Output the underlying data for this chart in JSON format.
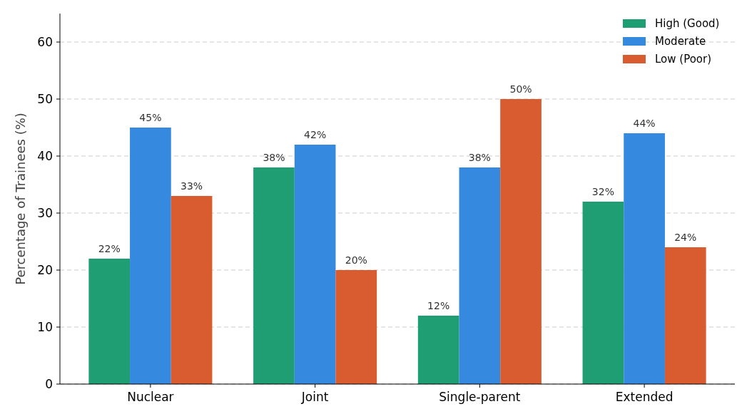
{
  "chart_data": {
    "type": "bar",
    "ylabel": "Percentage of Trainees (%)",
    "categories": [
      "Nuclear",
      "Joint",
      "Single-parent",
      "Extended"
    ],
    "series": [
      {
        "name": "High (Good)",
        "color": "#1f9e74",
        "values": [
          22,
          38,
          12,
          32
        ],
        "value_labels": [
          "22%",
          "38%",
          "12%",
          "32%"
        ]
      },
      {
        "name": "Moderate",
        "color": "#3589de",
        "values": [
          45,
          42,
          38,
          44
        ],
        "value_labels": [
          "45%",
          "42%",
          "38%",
          "44%"
        ]
      },
      {
        "name": "Low (Poor)",
        "color": "#d95b30",
        "values": [
          33,
          20,
          50,
          24
        ],
        "value_labels": [
          "33%",
          "20%",
          "50%",
          "24%"
        ]
      }
    ],
    "ylim": [
      0,
      65
    ],
    "yticks": [
      0,
      10,
      20,
      30,
      40,
      50,
      60
    ],
    "grid": "y",
    "legend": "top right"
  }
}
